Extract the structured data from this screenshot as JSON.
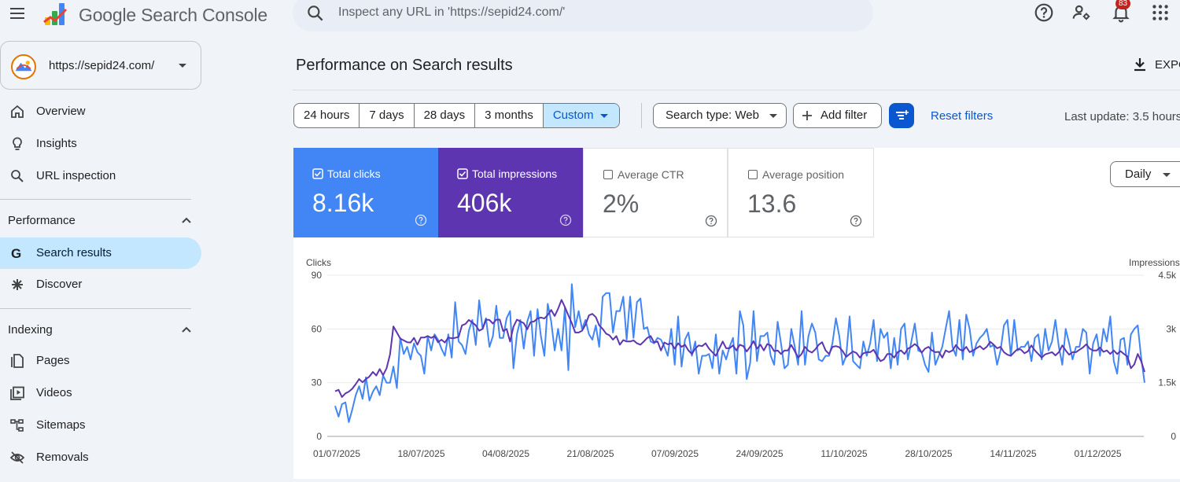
{
  "header": {
    "app_title": "Google Search Console",
    "search_placeholder": "Inspect any URL in 'https://sepid24.com/'",
    "notification_count": "83",
    "icons": [
      "menu-icon",
      "search-icon",
      "help-icon",
      "manage-accounts-icon",
      "notifications-icon",
      "apps-icon"
    ]
  },
  "sidebar": {
    "property": "https://sepid24.com/",
    "items_top": [
      {
        "label": "Overview",
        "icon": "home-icon"
      },
      {
        "label": "Insights",
        "icon": "lightbulb-icon"
      },
      {
        "label": "URL inspection",
        "icon": "search-icon"
      }
    ],
    "performance": {
      "title": "Performance",
      "items": [
        {
          "label": "Search results",
          "icon": "google-g-icon",
          "active": true
        },
        {
          "label": "Discover",
          "icon": "asterisk-icon"
        }
      ]
    },
    "indexing": {
      "title": "Indexing",
      "items": [
        {
          "label": "Pages",
          "icon": "pages-icon"
        },
        {
          "label": "Videos",
          "icon": "videos-icon"
        },
        {
          "label": "Sitemaps",
          "icon": "sitemap-icon"
        },
        {
          "label": "Removals",
          "icon": "removals-icon"
        }
      ]
    }
  },
  "main": {
    "page_title": "Performance on Search results",
    "export_label": "EXPO",
    "date_ranges": [
      "24 hours",
      "7 days",
      "28 days",
      "3 months",
      "Custom"
    ],
    "selected_range": "Custom",
    "search_type": "Search type: Web",
    "add_filter": "Add filter",
    "reset_filters": "Reset filters",
    "last_update": "Last update: 3.5 hours",
    "granularity": "Daily",
    "metrics": [
      {
        "label": "Total clicks",
        "value": "8.16k",
        "checked": true,
        "color": "#4285f4"
      },
      {
        "label": "Total impressions",
        "value": "406k",
        "checked": true,
        "color": "#5e35b1"
      },
      {
        "label": "Average CTR",
        "value": "2%",
        "checked": false
      },
      {
        "label": "Average position",
        "value": "13.6",
        "checked": false
      }
    ]
  },
  "chart_data": {
    "type": "line",
    "left_axis_label": "Clicks",
    "right_axis_label": "Impressions",
    "y_left_ticks": [
      "90",
      "60",
      "30",
      "0"
    ],
    "y_right_ticks": [
      "4.5k",
      "3k",
      "1.5k",
      "0"
    ],
    "y_left_lim": [
      0,
      90
    ],
    "y_right_lim": [
      0,
      4500
    ],
    "x_ticks": [
      "01/07/2025",
      "18/07/2025",
      "04/08/2025",
      "21/08/2025",
      "07/09/2025",
      "24/09/2025",
      "11/10/2025",
      "28/10/2025",
      "14/11/2025",
      "01/12/2025"
    ],
    "series": [
      {
        "name": "Clicks",
        "color": "#4285f4",
        "values": [
          17,
          11,
          18,
          19,
          8,
          15,
          23,
          28,
          21,
          33,
          20,
          25,
          28,
          23,
          34,
          30,
          30,
          39,
          27,
          55,
          46,
          50,
          43,
          52,
          47,
          45,
          35,
          56,
          48,
          57,
          54,
          49,
          45,
          57,
          44,
          75,
          53,
          51,
          46,
          59,
          65,
          51,
          76,
          60,
          66,
          50,
          56,
          73,
          55,
          55,
          66,
          70,
          38,
          57,
          65,
          49,
          64,
          70,
          45,
          71,
          56,
          45,
          74,
          64,
          48,
          60,
          48,
          72,
          37,
          85,
          61,
          70,
          60,
          65,
          57,
          54,
          62,
          50,
          78,
          80,
          80,
          58,
          70,
          70,
          78,
          54,
          78,
          55,
          75,
          77,
          60,
          61,
          53,
          52,
          55,
          54,
          50,
          45,
          60,
          40,
          67,
          39,
          54,
          58,
          45,
          53,
          35,
          45,
          45,
          46,
          38,
          57,
          35,
          48,
          43,
          50,
          55,
          35,
          70,
          62,
          32,
          41,
          70,
          42,
          56,
          56,
          58,
          45,
          40,
          64,
          52,
          38,
          40,
          60,
          50,
          40,
          70,
          40,
          56,
          63,
          58,
          43,
          42,
          45,
          45,
          52,
          66,
          56,
          40,
          45,
          67,
          42,
          40,
          38,
          53,
          45,
          52,
          65,
          42,
          60,
          55,
          58,
          38,
          55,
          40,
          60,
          63,
          43,
          53,
          63,
          48,
          47,
          40,
          36,
          58,
          40,
          45,
          50,
          60,
          70,
          50,
          45,
          65,
          43,
          68,
          60,
          45,
          52,
          55,
          57,
          60,
          50,
          51,
          40,
          48,
          62,
          65,
          45,
          65,
          48,
          50,
          50,
          53,
          42,
          55,
          57,
          43,
          60,
          48,
          53,
          65,
          50,
          40,
          60,
          52,
          43,
          50,
          50,
          60,
          58,
          35,
          52,
          57,
          45,
          60,
          53,
          67,
          42,
          35,
          54,
          55,
          40,
          57,
          60,
          62,
          44,
          30
        ]
      },
      {
        "name": "Impressions",
        "color": "#5e35b1",
        "values": [
          1260,
          1300,
          1100,
          1200,
          1250,
          1330,
          1460,
          1600,
          1510,
          1600,
          1670,
          1800,
          1700,
          1880,
          1710,
          1900,
          2290,
          3070,
          2900,
          2730,
          2680,
          2630,
          2620,
          2750,
          2560,
          2760,
          2760,
          2800,
          2750,
          2800,
          2630,
          2700,
          2620,
          2760,
          2740,
          2750,
          2780,
          3100,
          3140,
          3250,
          3180,
          3100,
          2950,
          3000,
          3260,
          3250,
          3150,
          3260,
          3260,
          2940,
          3000,
          2650,
          3060,
          3260,
          3210,
          3160,
          2990,
          3190,
          3210,
          3290,
          3320,
          3290,
          3390,
          3530,
          3360,
          3560,
          3810,
          3610,
          3380,
          3160,
          2900,
          2900,
          2950,
          3120,
          3380,
          3420,
          3330,
          3100,
          3000,
          2870,
          2820,
          2700,
          2800,
          2560,
          2690,
          2650,
          2650,
          2680,
          2600,
          2560,
          2650,
          2750,
          2800,
          2620,
          2650,
          2400,
          2620,
          2570,
          2600,
          2450,
          2600,
          2500,
          2560,
          2400,
          2300,
          2450,
          2540,
          2520,
          2600,
          2450,
          2350,
          2250,
          2450,
          2650,
          2460,
          2460,
          2540,
          2400,
          2560,
          2520,
          2370,
          2500,
          2660,
          2450,
          2560,
          2400,
          2580,
          2540,
          2380,
          2400,
          2300,
          2400,
          2400,
          2550,
          2380,
          2200,
          2300,
          2500,
          2390,
          2340,
          2430,
          2560,
          2630,
          2400,
          2300,
          2500,
          2520,
          2490,
          2380,
          2220,
          2300,
          2370,
          2330,
          2200,
          2320,
          2350,
          2350,
          2420,
          2250,
          2100,
          2150,
          2300,
          2300,
          2200,
          2350,
          2400,
          2300,
          2450,
          2500,
          2580,
          2500,
          2340,
          2450,
          2500,
          2400,
          2350,
          2360,
          2200,
          2400,
          2350,
          2400,
          2550,
          2430,
          2390,
          2500,
          2350,
          2400,
          2460,
          2520,
          2430,
          2500,
          2640,
          2560,
          2460,
          2500,
          2350,
          2280,
          2250,
          2350,
          2440,
          2420,
          2320,
          2380,
          2540,
          2400,
          2300,
          2200,
          2290,
          2320,
          2350,
          2260,
          2350,
          2540,
          2400,
          2280,
          2350,
          2350,
          2420,
          2480,
          2570,
          2450,
          2400,
          2400,
          2480,
          2360,
          2400,
          2300,
          2400,
          2300,
          2380,
          2300,
          2230,
          1900,
          2010,
          2300,
          2100,
          1800
        ]
      }
    ]
  }
}
